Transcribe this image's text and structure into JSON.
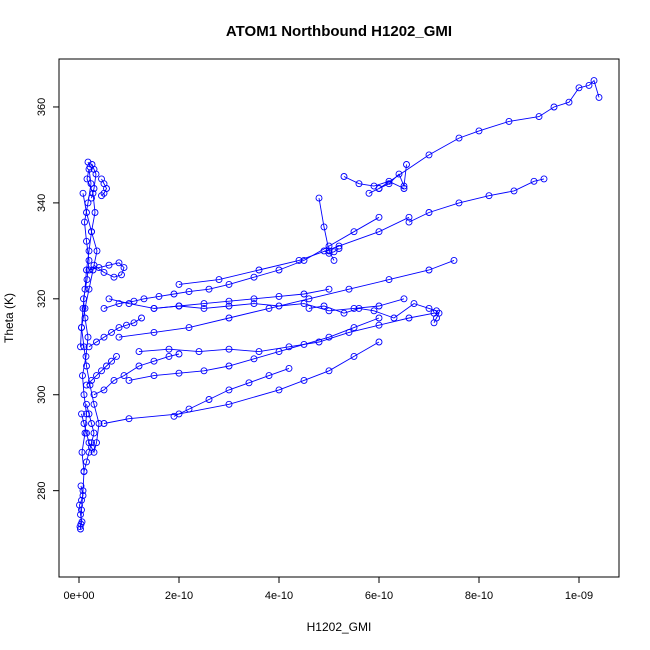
{
  "chart_data": {
    "type": "scatter",
    "title": "ATOM1 Northbound H1202_GMI",
    "xlabel": "H1202_GMI",
    "ylabel": "Theta (K)",
    "xlim": [
      -4e-11,
      1.08e-09
    ],
    "ylim": [
      262,
      370
    ],
    "x_ticks": [
      0,
      2e-10,
      4e-10,
      6e-10,
      8e-10,
      1e-09
    ],
    "x_tick_labels": [
      "0e+00",
      "2e-10",
      "4e-10",
      "6e-10",
      "8e-10",
      "1e-09"
    ],
    "y_ticks": [
      280,
      300,
      320,
      340,
      360
    ],
    "y_tick_labels": [
      "280",
      "300",
      "320",
      "340",
      "360"
    ],
    "grid": false,
    "color": "#0000ff",
    "marker": "open-circle",
    "series": [
      {
        "x": [
          3e-12,
          5e-12,
          8e-12,
          1e-11,
          6e-12,
          1.2e-11,
          1.5e-11,
          1e-11,
          7e-12,
          1.4e-11,
          1.8e-11,
          1.2e-11,
          9e-12,
          1.6e-11,
          2e-11,
          1.5e-11,
          1.1e-11,
          1.8e-11,
          2.4e-11,
          2e-11,
          1.6e-11,
          2.8e-11,
          3.2e-11,
          2.5e-11,
          2e-11,
          1.5e-11,
          1.2e-11,
          8e-12,
          5e-12,
          3e-12
        ],
        "y": [
          272,
          276,
          280,
          284,
          288,
          292,
          296,
          300,
          304,
          308,
          312,
          316,
          320,
          324,
          328,
          332,
          336,
          340,
          344,
          347,
          345,
          342,
          338,
          334,
          330,
          326,
          322,
          318,
          314,
          310
        ]
      },
      {
        "x": [
          5e-12,
          1e-11,
          1.5e-11,
          2e-11,
          2.5e-11,
          3e-11,
          3.5e-11,
          4e-11,
          3e-11,
          2.2e-11,
          1.5e-11,
          1e-11,
          5e-12,
          1.2e-11,
          2e-11,
          2.8e-11,
          3.6e-11,
          2.5e-11,
          1.5e-11,
          8e-12
        ],
        "y": [
          296,
          294,
          292,
          290,
          289,
          288,
          290,
          294,
          298,
          302,
          306,
          310,
          314,
          318,
          322,
          326,
          330,
          334,
          338,
          342
        ]
      },
      {
        "x": [
          1.8e-11,
          2.2e-11,
          2.6e-11,
          3e-11,
          3.4e-11,
          3e-11,
          2.5e-11
        ],
        "y": [
          348.5,
          347.5,
          348,
          347,
          346,
          343,
          341
        ]
      },
      {
        "x": [
          4.5e-11,
          5e-11,
          5.5e-11,
          5e-11,
          4.5e-11
        ],
        "y": [
          345,
          344,
          343,
          342,
          341.5
        ]
      },
      {
        "x": [
          2e-11,
          4e-11,
          6e-11,
          8e-11,
          9e-11,
          8.5e-11,
          7e-11,
          5e-11,
          3e-11
        ],
        "y": [
          326,
          326.5,
          327,
          327.5,
          326.5,
          325,
          324.5,
          325.5,
          327
        ]
      },
      {
        "x": [
          3e-11,
          5e-11,
          7e-11,
          9e-11,
          1.2e-10,
          1.5e-10,
          1.8e-10,
          2e-10
        ],
        "y": [
          300,
          301,
          303,
          304,
          306,
          307,
          308,
          308.5
        ]
      },
      {
        "x": [
          5e-11,
          8e-11,
          1.1e-10,
          1.3e-10,
          1.6e-10,
          1.9e-10,
          2.2e-10,
          2.6e-10,
          3e-10,
          3.5e-10,
          4e-10,
          4.5e-10,
          5e-10,
          5.5e-10,
          6e-10
        ],
        "y": [
          318,
          319,
          319.5,
          320,
          320.5,
          321,
          321.5,
          322,
          323,
          324.5,
          326,
          328,
          331,
          334,
          337
        ]
      },
      {
        "x": [
          6e-11,
          1e-10,
          1.5e-10,
          2e-10,
          2.5e-10,
          3e-10,
          3.5e-10,
          4e-10,
          4.5e-10,
          5e-10,
          5.5e-10,
          6e-10,
          6.5e-10
        ],
        "y": [
          320,
          319,
          318,
          318.5,
          318,
          318.5,
          319,
          318.5,
          319,
          317.5,
          318,
          318.5,
          320
        ]
      },
      {
        "x": [
          4.6e-10,
          4.9e-10,
          5.3e-10,
          5.6e-10,
          5.9e-10,
          6.3e-10,
          6.7e-10,
          7e-10,
          7.15e-10,
          7.2e-10,
          7.15e-10,
          7.1e-10
        ],
        "y": [
          318,
          318.5,
          317,
          318,
          317.5,
          316,
          319,
          318,
          317.5,
          317,
          316,
          315
        ]
      },
      {
        "x": [
          1e-10,
          1.5e-10,
          2e-10,
          2.5e-10,
          3e-10,
          3.5e-10,
          4e-10,
          4.5e-10,
          5e-10,
          5.5e-10,
          6e-10
        ],
        "y": [
          303,
          304,
          304.5,
          305,
          306,
          307.5,
          309,
          310.5,
          312,
          314,
          316
        ]
      },
      {
        "x": [
          1.2e-10,
          1.8e-10,
          2.4e-10,
          3e-10,
          3.6e-10,
          4.2e-10,
          4.8e-10,
          5.4e-10,
          6e-10,
          6.6e-10,
          7.1e-10
        ],
        "y": [
          309,
          309.5,
          309,
          309.5,
          309,
          310,
          311,
          313,
          314.5,
          316,
          317
        ]
      },
      {
        "x": [
          5e-11,
          1e-10,
          2e-10,
          3e-10,
          4e-10,
          4.5e-10,
          5e-10,
          5.5e-10,
          6e-10
        ],
        "y": [
          294,
          295,
          296,
          298,
          301,
          303,
          305,
          308,
          311
        ]
      },
      {
        "x": [
          8e-11,
          1.5e-10,
          2.2e-10,
          3e-10,
          3.8e-10,
          4.6e-10,
          5.4e-10,
          6.2e-10,
          7e-10,
          7.5e-10
        ],
        "y": [
          312,
          313,
          314,
          316,
          318,
          320,
          322,
          324,
          326,
          328
        ]
      },
      {
        "x": [
          1.5e-10,
          2e-10,
          2.5e-10,
          3e-10,
          3.5e-10,
          4e-10,
          4.5e-10,
          5e-10
        ],
        "y": [
          318,
          318.5,
          319,
          319.5,
          320,
          320.5,
          321,
          322
        ]
      },
      {
        "x": [
          2e-10,
          2.8e-10,
          3.6e-10,
          4.4e-10,
          5.2e-10,
          6e-10,
          6.6e-10
        ],
        "y": [
          323,
          324,
          326,
          328,
          331,
          334,
          337
        ]
      },
      {
        "x": [
          5.3e-10,
          5.6e-10,
          5.9e-10,
          6.2e-10,
          6.5e-10
        ],
        "y": [
          345.5,
          344,
          343.5,
          344.5,
          343
        ]
      },
      {
        "x": [
          5.8e-10,
          6e-10,
          6.2e-10,
          6.4e-10,
          6.5e-10,
          6.55e-10
        ],
        "y": [
          342,
          343,
          344,
          346,
          343.5,
          348
        ]
      },
      {
        "x": [
          6.6e-10,
          7e-10,
          7.6e-10,
          8.2e-10,
          8.7e-10,
          9.1e-10,
          9.3e-10
        ],
        "y": [
          336,
          338,
          340,
          341.5,
          342.5,
          344.5,
          345
        ]
      },
      {
        "x": [
          6e-10,
          7e-10,
          7.6e-10,
          8e-10,
          8.6e-10,
          9.2e-10,
          9.5e-10,
          9.8e-10,
          1e-09,
          1.02e-09,
          1.03e-09,
          1.04e-09
        ],
        "y": [
          343,
          350,
          353.5,
          355,
          357,
          358,
          360,
          361,
          364,
          364.5,
          365.5,
          362
        ]
      },
      {
        "x": [
          2e-12,
          4e-12,
          6e-12,
          3e-12,
          1e-12,
          5e-12,
          8e-12,
          4e-12
        ],
        "y": [
          272.5,
          273,
          273.5,
          275,
          277,
          278,
          279,
          281
        ]
      },
      {
        "x": [
          1e-11,
          1.5e-11,
          2e-11,
          2.5e-11,
          3e-11,
          2.5e-11,
          2e-11,
          1.5e-11
        ],
        "y": [
          284,
          286,
          288,
          290,
          292,
          294,
          296,
          298
        ]
      },
      {
        "x": [
          1.5e-11,
          2.5e-11,
          3.5e-11,
          4.5e-11,
          5.5e-11,
          6.5e-11,
          7.5e-11
        ],
        "y": [
          302,
          303,
          304,
          305,
          306,
          307,
          308
        ]
      },
      {
        "x": [
          2e-11,
          3.5e-11,
          5e-11,
          6.5e-11,
          8e-11,
          9.5e-11,
          1.1e-10,
          1.25e-10
        ],
        "y": [
          310,
          311,
          312,
          313,
          314,
          314.5,
          315,
          316
        ]
      },
      {
        "x": [
          1.9e-10,
          2.2e-10,
          2.6e-10,
          3e-10,
          3.4e-10,
          3.8e-10,
          4.2e-10
        ],
        "y": [
          295.5,
          297,
          299,
          301,
          302.5,
          304,
          305.5
        ]
      },
      {
        "x": [
          4.8e-10,
          4.9e-10,
          5e-10,
          5.1e-10
        ],
        "y": [
          341,
          335,
          330,
          328
        ]
      },
      {
        "x": [
          4.9e-10,
          5e-10,
          5.1e-10,
          5.2e-10
        ],
        "y": [
          330,
          329.5,
          329.8,
          330.5
        ]
      }
    ]
  }
}
